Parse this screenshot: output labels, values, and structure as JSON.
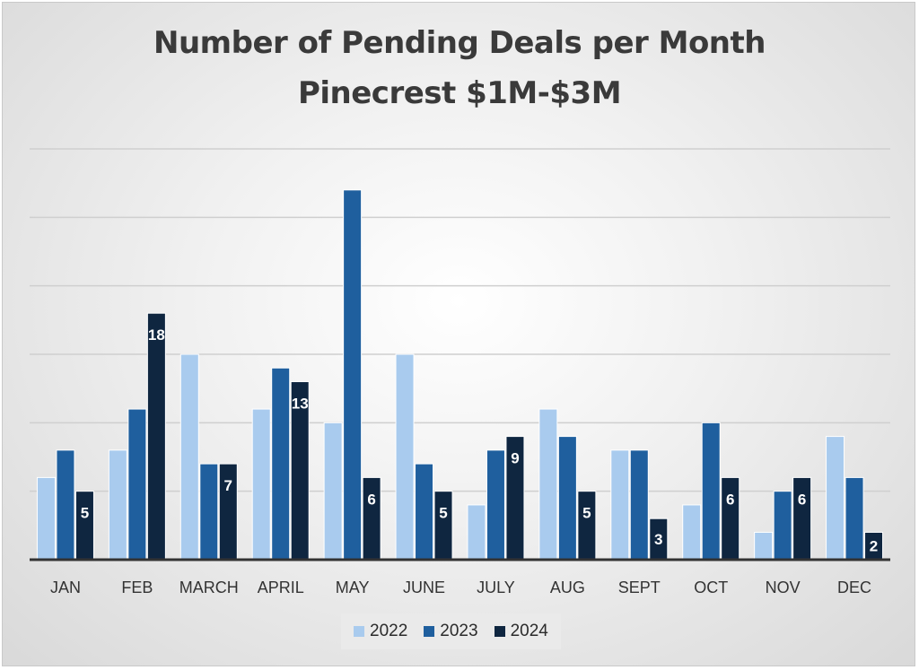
{
  "chart_data": {
    "type": "bar",
    "title": "Number of Pending Deals per Month",
    "subtitle": "Pinecrest $1M-$3M",
    "categories": [
      "JAN",
      "FEB",
      "MARCH",
      "APRIL",
      "MAY",
      "JUNE",
      "JULY",
      "AUG",
      "SEPT",
      "OCT",
      "NOV",
      "DEC"
    ],
    "series": [
      {
        "name": "2022",
        "color": "#a9cbee",
        "values": [
          6,
          8,
          15,
          11,
          10,
          15,
          4,
          11,
          8,
          4,
          2,
          9
        ],
        "labels": false
      },
      {
        "name": "2023",
        "color": "#1f5f9e",
        "values": [
          8,
          11,
          7,
          14,
          27,
          7,
          8,
          9,
          8,
          10,
          5,
          6
        ],
        "labels": false
      },
      {
        "name": "2024",
        "color": "#0f2640",
        "values": [
          5,
          18,
          7,
          13,
          6,
          5,
          9,
          5,
          3,
          6,
          6,
          2
        ],
        "labels": true
      }
    ],
    "ylim": [
      0,
      30
    ],
    "y_gridlines": [
      0,
      5,
      10,
      15,
      20,
      25,
      30
    ],
    "y_tick_labels_shown": false,
    "grid": true,
    "legend_position": "bottom",
    "xlabel": "",
    "ylabel": ""
  }
}
